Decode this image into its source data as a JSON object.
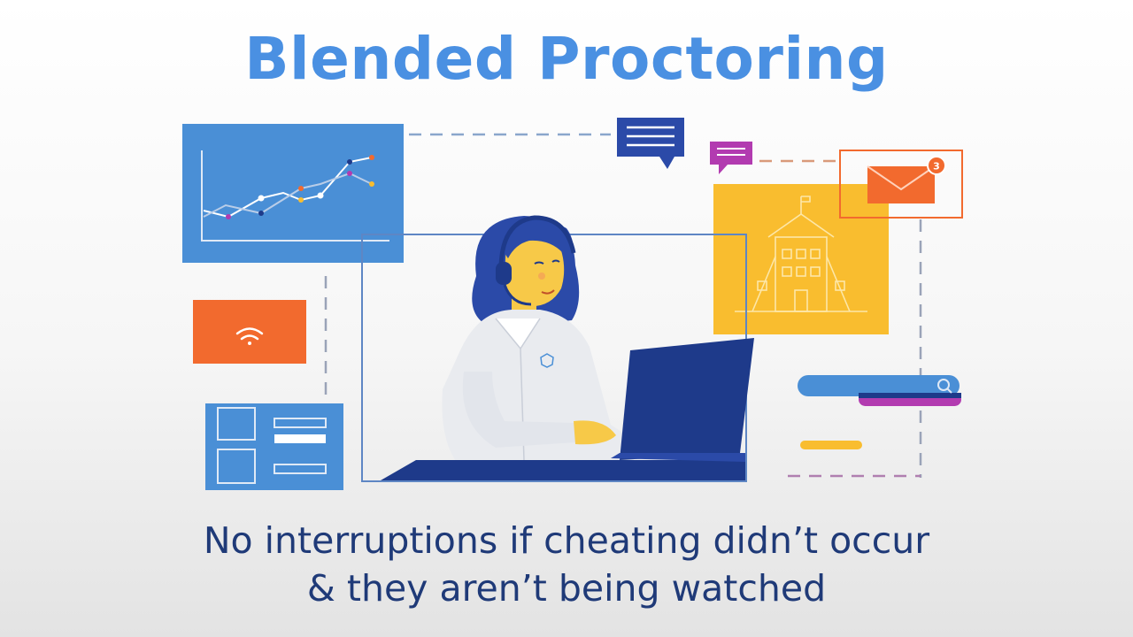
{
  "title": "Blended Proctoring",
  "caption": {
    "line1": "No interruptions if cheating didn’t occur",
    "line2": "& they aren’t being watched"
  },
  "illustration": {
    "notification_count": "3",
    "colors": {
      "blue": "#4a8fd6",
      "orange": "#f26a2e",
      "yellow": "#f9bd2f",
      "navy": "#1e3a8a",
      "purple": "#b23bb0",
      "skin": "#f7c948"
    },
    "icons": [
      "line-chart-icon",
      "wifi-icon",
      "chat-bubble-icon",
      "email-icon",
      "school-building-icon",
      "search-icon",
      "laptop-icon",
      "headset-icon"
    ]
  }
}
